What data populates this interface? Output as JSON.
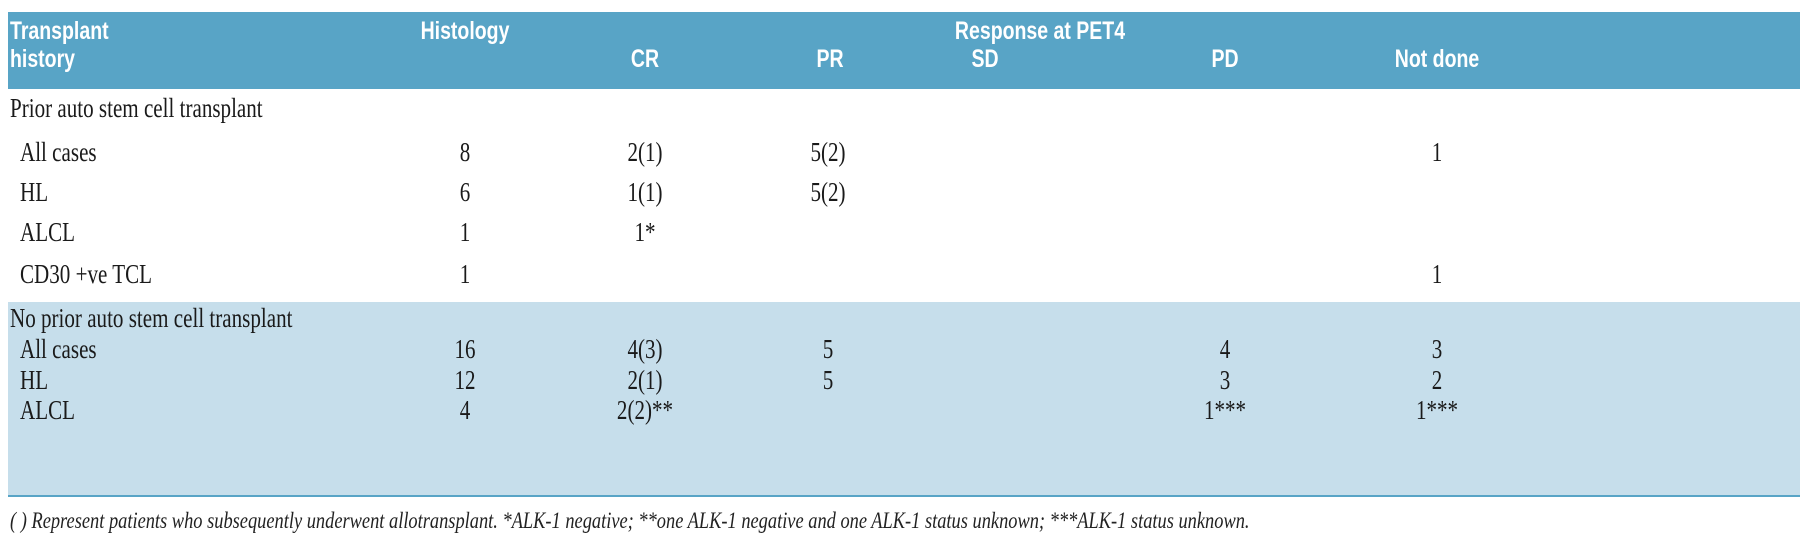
{
  "header": {
    "col1_line1": "Transplant",
    "col1_line2": "history",
    "histology": "Histology",
    "response": "Response at PET4",
    "cr": "CR",
    "pr": "PR",
    "sd": "SD",
    "pd": "PD",
    "not_done": "Not done"
  },
  "sections": [
    {
      "title": "Prior auto stem cell transplant",
      "rows": [
        {
          "label": "All cases",
          "histology": "8",
          "cr": "2(1)",
          "pr": "5(2)",
          "sd": "",
          "pd": "",
          "not_done": "1"
        },
        {
          "label": "HL",
          "histology": "6",
          "cr": "1(1)",
          "pr": "5(2)",
          "sd": "",
          "pd": "",
          "not_done": ""
        },
        {
          "label": "ALCL",
          "histology": "1",
          "cr": "1*",
          "pr": "",
          "sd": "",
          "pd": "",
          "not_done": ""
        },
        {
          "label": "CD30 +ve TCL",
          "histology": "1",
          "cr": "",
          "pr": "",
          "sd": "",
          "pd": "",
          "not_done": "1"
        }
      ]
    },
    {
      "title": "No prior auto stem cell transplant",
      "rows": [
        {
          "label": "All cases",
          "histology": "16",
          "cr": "4(3)",
          "pr": "5",
          "sd": "",
          "pd": "4",
          "not_done": "3"
        },
        {
          "label": "HL",
          "histology": "12",
          "cr": "2(1)",
          "pr": "5",
          "sd": "",
          "pd": "3",
          "not_done": "2"
        },
        {
          "label": "ALCL",
          "histology": "4",
          "cr": "2(2)**",
          "pr": "",
          "sd": "",
          "pd": "1***",
          "not_done": "1***"
        }
      ]
    }
  ],
  "footnote": "( ) Represent patients who subsequently underwent allotransplant. *ALK-1 negative; **one ALK-1 negative and one ALK-1 status unknown; ***ALK-1 status unknown.",
  "colors": {
    "header": "#58a4c6",
    "band": "#c6deeb"
  }
}
